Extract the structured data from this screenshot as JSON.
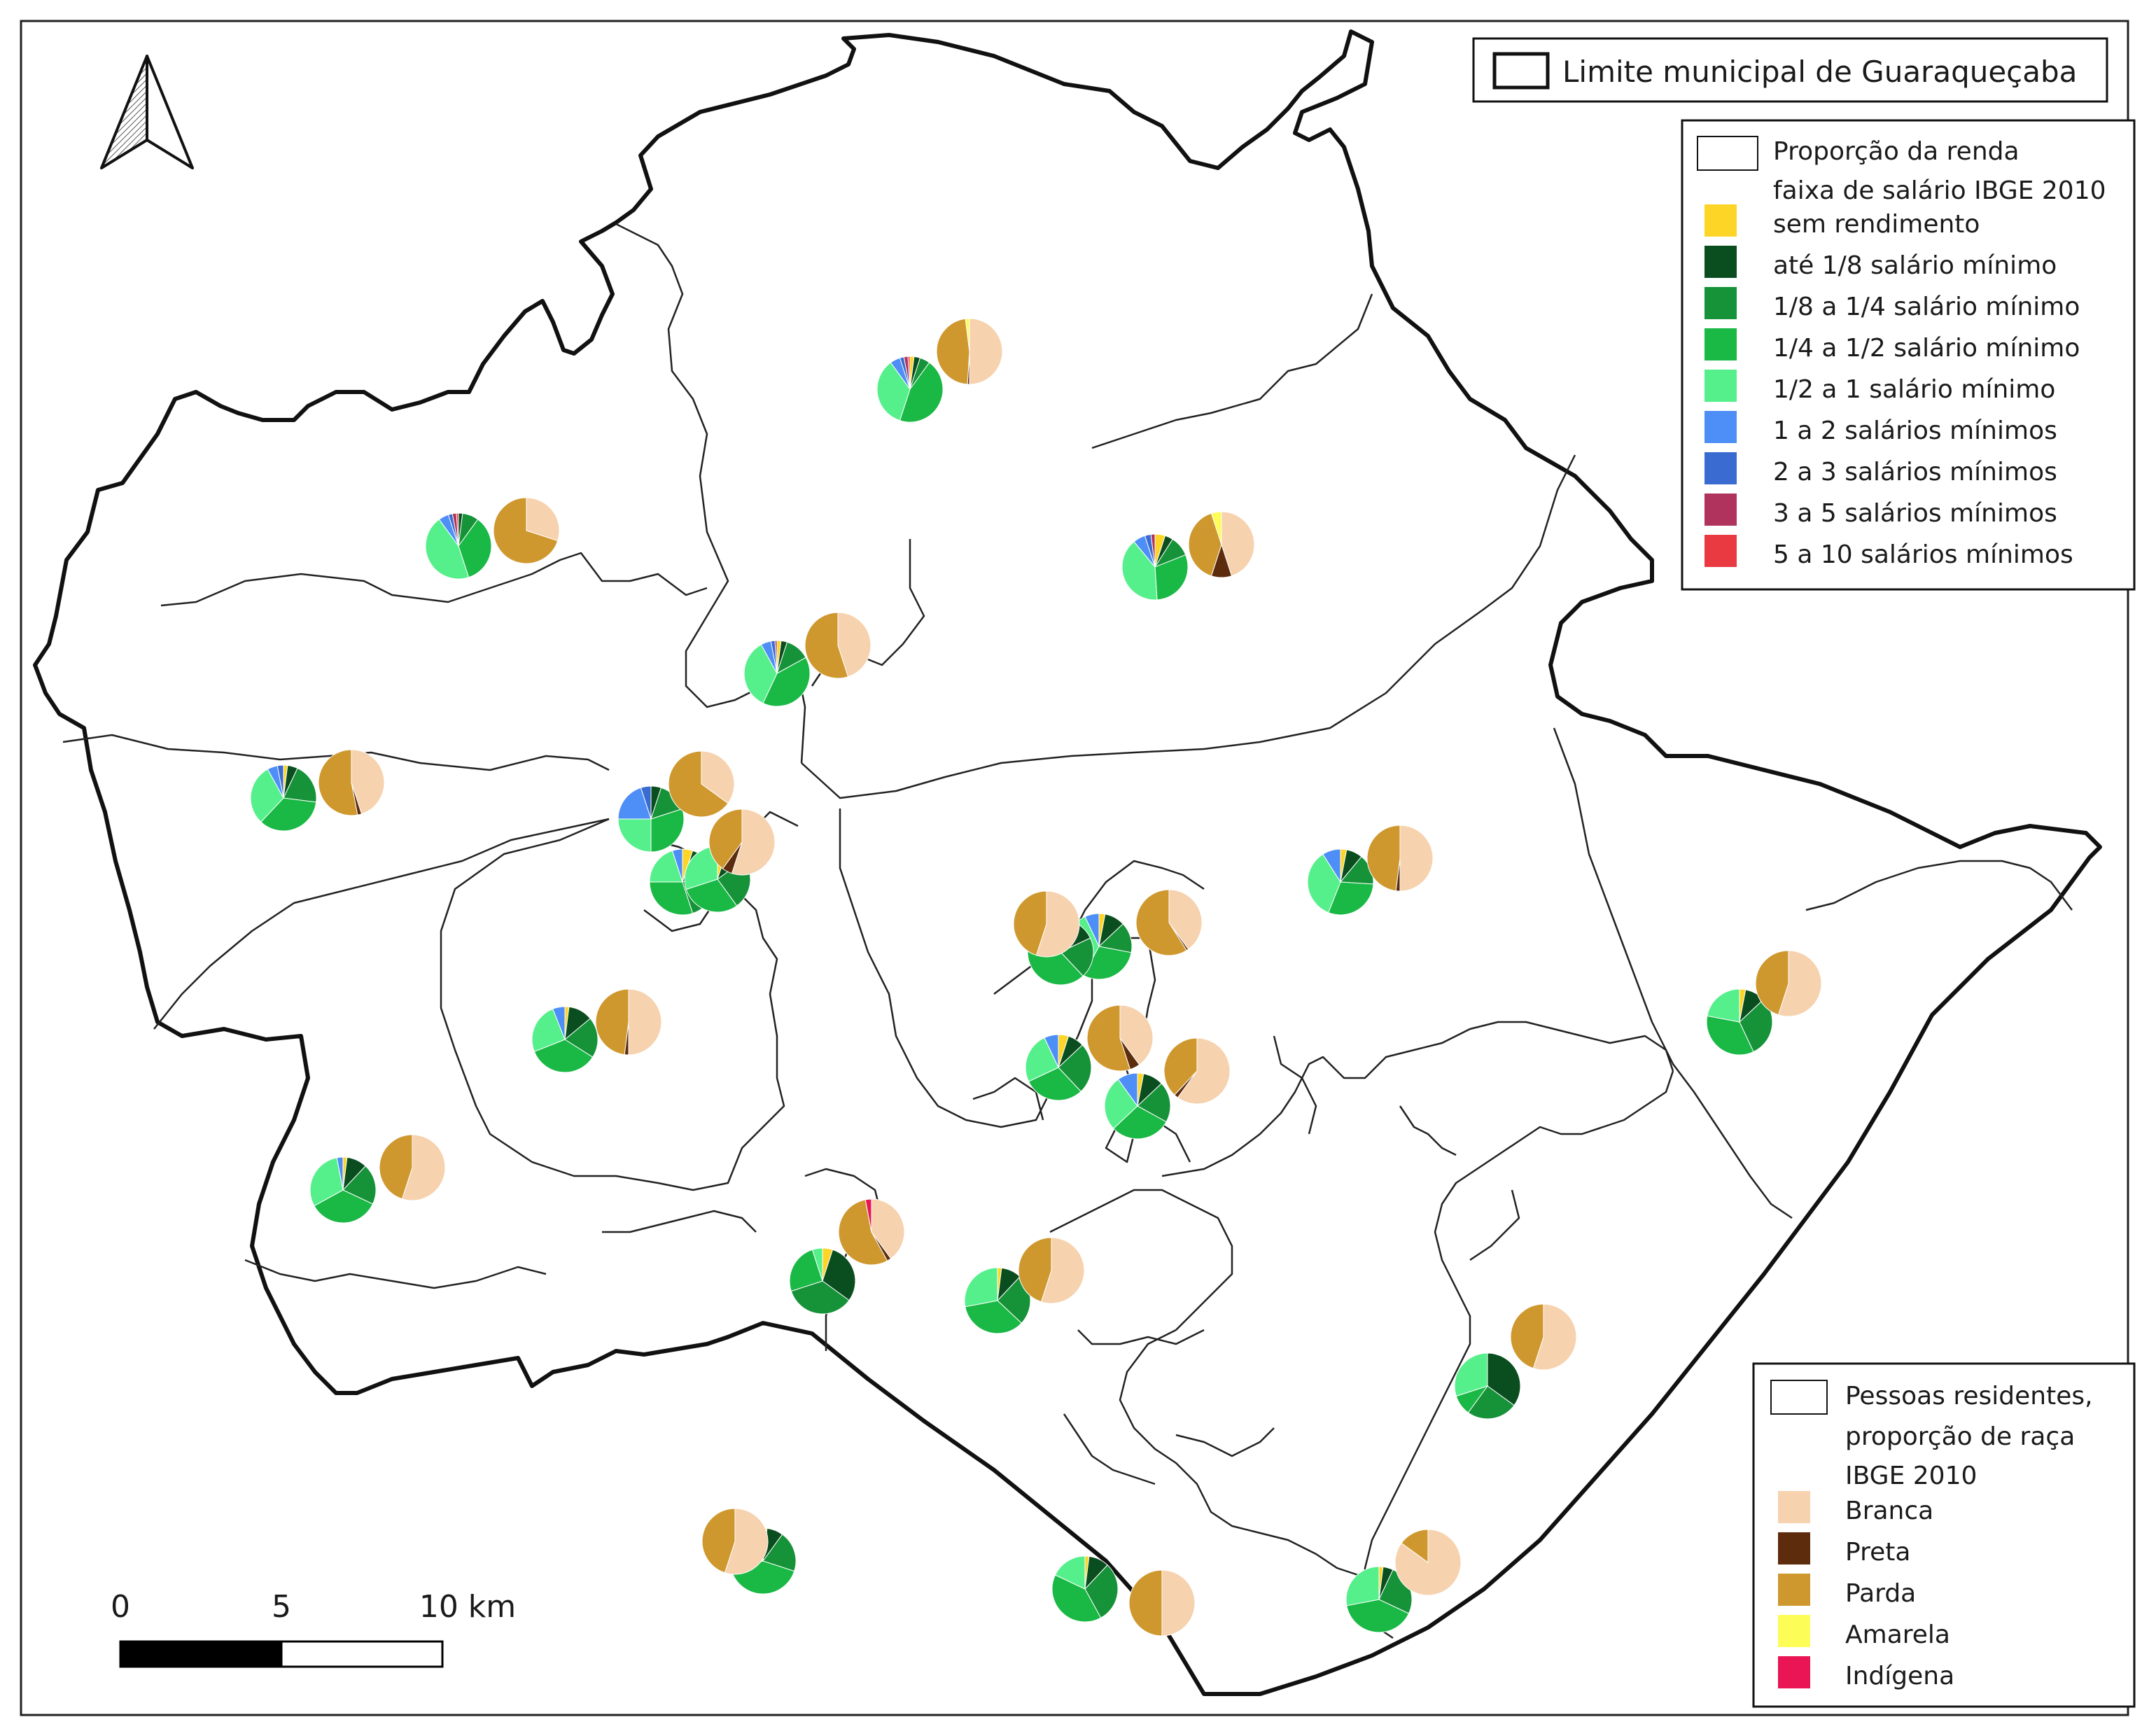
{
  "legend_boundary": {
    "label": "Limite municipal de Guaraqueçaba"
  },
  "legend_income": {
    "title_lines": [
      "Proporção da renda",
      "faixa de salário IBGE 2010"
    ],
    "items": [
      {
        "label": " sem rendimento",
        "color": "#fdd527"
      },
      {
        "label": "até 1/8 salário mínimo",
        "color": "#0a4d1f"
      },
      {
        "label": "1/8 a 1/4 salário mínimo",
        "color": "#169238"
      },
      {
        "label": "1/4 a 1/2 salário mínimo",
        "color": "#1ab845"
      },
      {
        "label": "1/2 a 1 salário mínimo",
        "color": "#55f08b"
      },
      {
        "label": "1 a 2 salários mínimos",
        "color": "#4e8ef7"
      },
      {
        "label": "2 a 3 salários mínimos",
        "color": "#3a6bd0"
      },
      {
        "label": "3 a 5 salários mínimos",
        "color": "#b0335d"
      },
      {
        "label": "5 a 10 salários mínimos",
        "color": "#ea3a41"
      }
    ]
  },
  "legend_race": {
    "title_lines": [
      "Pessoas residentes,",
      "proporção de raça",
      "IBGE 2010"
    ],
    "items": [
      {
        "label": "Branca",
        "color": "#f6d2ae"
      },
      {
        "label": "Preta",
        "color": "#5c2c0d"
      },
      {
        "label": "Parda",
        "color": "#cf982f"
      },
      {
        "label": "Amarela",
        "color": "#fdfd58"
      },
      {
        "label": "Indígena",
        "color": "#e91554"
      }
    ]
  },
  "scale_bar": {
    "labels": [
      "0",
      "5",
      "10 km"
    ]
  },
  "north_arrow": {
    "icon": "north-arrow-icon"
  },
  "income_pies": [
    {
      "values": [
        2,
        3,
        5,
        45,
        35,
        5,
        2,
        2,
        1
      ]
    },
    {
      "values": [
        0,
        2,
        8,
        35,
        45,
        5,
        2,
        2,
        1
      ]
    },
    {
      "values": [
        5,
        4,
        10,
        30,
        40,
        6,
        3,
        2
      ]
    },
    {
      "values": [
        2,
        3,
        12,
        40,
        35,
        5,
        2,
        1
      ]
    },
    {
      "values": [
        2,
        5,
        20,
        35,
        30,
        5,
        3
      ]
    },
    {
      "values": [
        0,
        5,
        15,
        30,
        25,
        20,
        5
      ]
    },
    {
      "values": [
        5,
        15,
        25,
        30,
        20,
        5
      ]
    },
    {
      "values": [
        3,
        10,
        15,
        30,
        35,
        7
      ]
    },
    {
      "values": [
        3,
        8,
        15,
        30,
        35,
        9
      ]
    },
    {
      "values": [
        2,
        12,
        20,
        35,
        25,
        6
      ]
    },
    {
      "values": [
        5,
        8,
        25,
        30,
        25,
        7
      ]
    },
    {
      "values": [
        3,
        10,
        20,
        30,
        27,
        10
      ]
    },
    {
      "values": [
        2,
        10,
        20,
        35,
        30,
        3
      ]
    },
    {
      "values": [
        5,
        30,
        35,
        25,
        5
      ]
    },
    {
      "values": [
        2,
        10,
        25,
        35,
        28
      ]
    },
    {
      "values": [
        3,
        10,
        30,
        35,
        22
      ]
    },
    {
      "values": [
        0,
        35,
        25,
        10,
        30
      ]
    },
    {
      "values": [
        2,
        10,
        30,
        40,
        18
      ]
    },
    {
      "values": [
        2,
        5,
        25,
        40,
        28
      ]
    },
    {
      "values": [
        2,
        8,
        20,
        40,
        30
      ]
    },
    {
      "values": [
        3,
        15,
        20,
        40,
        22
      ]
    },
    {
      "values": [
        5,
        10,
        25,
        30,
        30
      ]
    }
  ],
  "race_pies": [
    {
      "values": [
        50,
        1,
        47,
        2
      ]
    },
    {
      "values": [
        30,
        0,
        70
      ]
    },
    {
      "values": [
        45,
        10,
        40,
        5
      ]
    },
    {
      "values": [
        45,
        0,
        55
      ]
    },
    {
      "values": [
        45,
        2,
        53
      ]
    },
    {
      "values": [
        35,
        0,
        65
      ]
    },
    {
      "values": [
        55,
        5,
        40
      ]
    },
    {
      "values": [
        40,
        1,
        59
      ]
    },
    {
      "values": [
        50,
        2,
        48
      ]
    },
    {
      "values": [
        50,
        2,
        48
      ]
    },
    {
      "values": [
        40,
        5,
        55
      ]
    },
    {
      "values": [
        60,
        2,
        38
      ]
    },
    {
      "values": [
        55,
        0,
        45
      ]
    },
    {
      "values": [
        40,
        2,
        55,
        0,
        3
      ]
    },
    {
      "values": [
        55,
        0,
        45
      ]
    },
    {
      "values": [
        55,
        0,
        45
      ]
    },
    {
      "values": [
        55,
        0,
        45
      ]
    },
    {
      "values": [
        50,
        0,
        50
      ]
    },
    {
      "values": [
        85,
        0,
        15
      ]
    },
    {
      "values": [
        55,
        0,
        45
      ]
    },
    {
      "values": [
        55,
        0,
        45
      ]
    }
  ]
}
